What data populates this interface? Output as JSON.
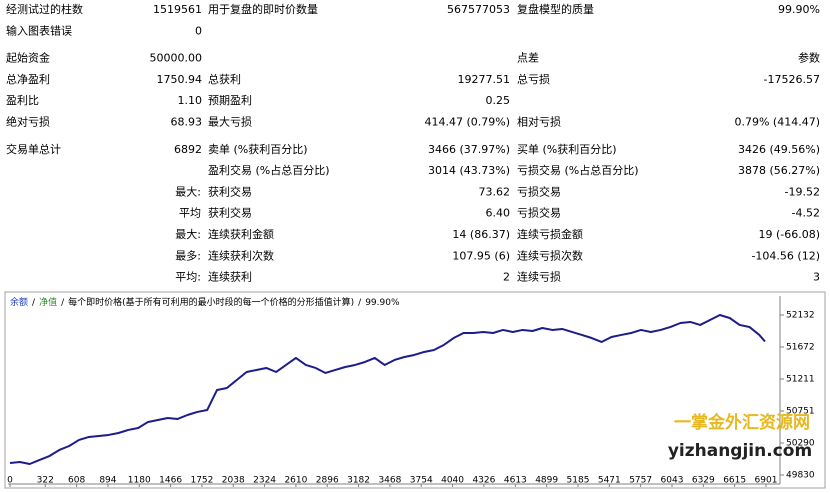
{
  "report": {
    "groups": [
      [
        {
          "left": {
            "label": "经测试过的柱数",
            "value": "1519561"
          },
          "middle": {
            "label": "用于复盘的即时价数量",
            "value": "567577053"
          },
          "right": {
            "label": "复盘模型的质量",
            "value": "99.90%"
          }
        },
        {
          "left": {
            "label": "输入图表错误",
            "value": "0"
          }
        }
      ],
      [
        {
          "left": {
            "label": "起始资金",
            "value": "50000.00"
          },
          "right": {
            "label": "点差",
            "value": "参数"
          }
        },
        {
          "left": {
            "label": "总净盈利",
            "value": "1750.94"
          },
          "middle": {
            "label": "总获利",
            "value": "19277.51"
          },
          "right": {
            "label": "总亏损",
            "value": "-17526.57"
          }
        },
        {
          "left": {
            "label": "盈利比",
            "value": "1.10"
          },
          "middle": {
            "label": "预期盈利",
            "value": "0.25"
          }
        },
        {
          "left": {
            "label": "绝对亏损",
            "value": "68.93"
          },
          "middle": {
            "label": "最大亏损",
            "value": "414.47 (0.79%)"
          },
          "right": {
            "label": "相对亏损",
            "value": "0.79% (414.47)"
          }
        }
      ],
      [
        {
          "left": {
            "label": "交易单总计",
            "value": "6892"
          },
          "middle": {
            "label": "卖单 (%获利百分比)",
            "value": "3466 (37.97%)"
          },
          "right": {
            "label": "买单 (%获利百分比)",
            "value": "3426 (49.56%)"
          }
        },
        {
          "middle": {
            "label": "盈利交易 (%占总百分比)",
            "value": "3014 (43.73%)"
          },
          "right": {
            "label": "亏损交易 (%占总百分比)",
            "value": "3878 (56.27%)"
          }
        },
        {
          "middle": {
            "prefix": "最大:",
            "label": "获利交易",
            "value": "73.62"
          },
          "right": {
            "label": "亏损交易",
            "value": "-19.52"
          }
        },
        {
          "middle": {
            "prefix": "平均",
            "label": "获利交易",
            "value": "6.40"
          },
          "right": {
            "label": "亏损交易",
            "value": "-4.52"
          }
        },
        {
          "middle": {
            "prefix": "最大:",
            "label": "连续获利金额",
            "value": "14 (86.37)"
          },
          "right": {
            "label": "连续亏损金额",
            "value": "19 (-66.08)"
          }
        },
        {
          "middle": {
            "prefix": "最多:",
            "label": "连续获利次数",
            "value": "107.95 (6)"
          },
          "right": {
            "label": "连续亏损次数",
            "value": "-104.56 (12)"
          }
        },
        {
          "middle": {
            "prefix": "平均:",
            "label": "连续获利",
            "value": "2"
          },
          "right": {
            "label": "连续亏损",
            "value": "3"
          }
        }
      ]
    ]
  },
  "chart_data": {
    "type": "line",
    "legend": {
      "separator": "/",
      "equity": {
        "name": "净值",
        "color": "#2e8b2e"
      },
      "model": "每个即时价格(基于所有可利用的最小时段的每一个价格的分形插值计算)",
      "quality": "99.90%"
    },
    "x": [
      0,
      90,
      180,
      270,
      360,
      450,
      540,
      630,
      720,
      810,
      900,
      990,
      1080,
      1170,
      1260,
      1350,
      1440,
      1530,
      1620,
      1710,
      1800,
      1890,
      1980,
      2070,
      2160,
      2250,
      2340,
      2430,
      2520,
      2610,
      2700,
      2790,
      2880,
      2970,
      3060,
      3150,
      3240,
      3330,
      3420,
      3510,
      3600,
      3690,
      3780,
      3870,
      3960,
      4050,
      4140,
      4230,
      4320,
      4410,
      4500,
      4590,
      4680,
      4770,
      4860,
      4950,
      5040,
      5130,
      5220,
      5310,
      5400,
      5490,
      5580,
      5670,
      5760,
      5850,
      5940,
      6030,
      6120,
      6210,
      6300,
      6390,
      6480,
      6570,
      6660,
      6750,
      6840,
      6892
    ],
    "series": [
      {
        "name": "余额",
        "color": "#1c1c8a",
        "values": [
          50003,
          50017,
          49988,
          50046,
          50103,
          50190,
          50247,
          50334,
          50377,
          50391,
          50406,
          50434,
          50478,
          50506,
          50593,
          50621,
          50650,
          50636,
          50693,
          50737,
          50765,
          51053,
          51082,
          51197,
          51312,
          51341,
          51370,
          51312,
          51413,
          51514,
          51413,
          51370,
          51298,
          51341,
          51384,
          51413,
          51456,
          51514,
          51413,
          51485,
          51528,
          51557,
          51600,
          51629,
          51701,
          51801,
          51873,
          51873,
          51888,
          51873,
          51917,
          51888,
          51917,
          51902,
          51945,
          51917,
          51931,
          51888,
          51845,
          51801,
          51744,
          51816,
          51845,
          51873,
          51917,
          51888,
          51917,
          51960,
          52017,
          52032,
          51989,
          52060,
          52132,
          52089,
          51989,
          51960,
          51845,
          51751
        ]
      }
    ],
    "xlim": [
      0,
      7029
    ],
    "ylim": [
      49729,
      52348
    ],
    "xticks": [
      0,
      322,
      608,
      894,
      1180,
      1466,
      1752,
      2038,
      2324,
      2610,
      2896,
      3182,
      3468,
      3754,
      4040,
      4326,
      4613,
      4899,
      5185,
      5471,
      5757,
      6043,
      6329,
      6615,
      6901
    ],
    "yticks": [
      49830,
      50290,
      50751,
      51211,
      51672,
      52132
    ],
    "grid": false
  },
  "watermark": {
    "cn": "一掌金外汇资源网",
    "url": "yizhangjin.com"
  }
}
